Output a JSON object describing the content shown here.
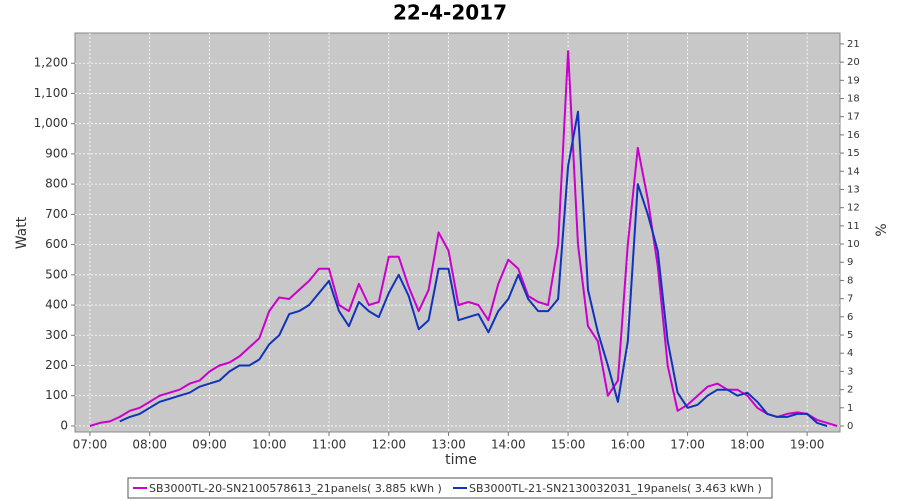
{
  "chart_data": {
    "type": "line",
    "title": "22-4-2017",
    "x_label": "time",
    "y_label": "Watt",
    "y2_label": "%",
    "x": [
      "07:00",
      "07:10",
      "07:20",
      "07:30",
      "07:40",
      "07:50",
      "08:00",
      "08:10",
      "08:20",
      "08:30",
      "08:40",
      "08:50",
      "09:00",
      "09:10",
      "09:20",
      "09:30",
      "09:40",
      "09:50",
      "10:00",
      "10:10",
      "10:20",
      "10:30",
      "10:40",
      "10:50",
      "11:00",
      "11:10",
      "11:20",
      "11:30",
      "11:40",
      "11:50",
      "12:00",
      "12:10",
      "12:20",
      "12:30",
      "12:40",
      "12:50",
      "13:00",
      "13:10",
      "13:20",
      "13:30",
      "13:40",
      "13:50",
      "14:00",
      "14:10",
      "14:20",
      "14:30",
      "14:40",
      "14:50",
      "15:00",
      "15:10",
      "15:20",
      "15:30",
      "15:40",
      "15:50",
      "16:00",
      "16:10",
      "16:20",
      "16:30",
      "16:40",
      "16:50",
      "17:00",
      "17:10",
      "17:20",
      "17:30",
      "17:40",
      "17:50",
      "18:00",
      "18:10",
      "18:20",
      "18:30",
      "18:40",
      "18:50",
      "19:00",
      "19:10",
      "19:20",
      "19:30"
    ],
    "series": [
      {
        "name": "SB3000TL-20-SN2100578613_21panels( 3.885 kWh )",
        "color": "#cc00cc",
        "values": [
          0,
          10,
          15,
          30,
          50,
          60,
          80,
          100,
          110,
          120,
          140,
          150,
          180,
          200,
          210,
          230,
          260,
          290,
          380,
          425,
          420,
          450,
          480,
          520,
          520,
          400,
          380,
          470,
          400,
          410,
          560,
          560,
          460,
          380,
          450,
          640,
          580,
          400,
          410,
          400,
          350,
          470,
          550,
          520,
          430,
          410,
          400,
          600,
          1240,
          600,
          330,
          280,
          100,
          150,
          600,
          920,
          750,
          530,
          200,
          50,
          70,
          100,
          130,
          140,
          120,
          120,
          100,
          60,
          40,
          30,
          40,
          45,
          40,
          20,
          10,
          0
        ]
      },
      {
        "name": "SB3000TL-21-SN2130032031_19panels( 3.463 kWh )",
        "color": "#1133bb",
        "values": [
          null,
          null,
          null,
          15,
          30,
          40,
          60,
          80,
          90,
          100,
          110,
          130,
          140,
          150,
          180,
          200,
          200,
          220,
          270,
          300,
          370,
          380,
          400,
          440,
          480,
          380,
          330,
          410,
          380,
          360,
          440,
          500,
          430,
          320,
          350,
          520,
          520,
          350,
          360,
          370,
          310,
          380,
          420,
          500,
          420,
          380,
          380,
          420,
          860,
          1040,
          450,
          310,
          200,
          80,
          280,
          800,
          700,
          580,
          280,
          110,
          60,
          70,
          100,
          120,
          120,
          100,
          110,
          80,
          40,
          30,
          30,
          40,
          40,
          10,
          0,
          null
        ]
      }
    ],
    "xlim": [
      "06:45",
      "19:33"
    ],
    "xticks": [
      "07:00",
      "08:00",
      "09:00",
      "10:00",
      "11:00",
      "12:00",
      "13:00",
      "14:00",
      "15:00",
      "16:00",
      "17:00",
      "18:00",
      "19:00"
    ],
    "ylim": [
      -20,
      1300
    ],
    "yticks": [
      0,
      100,
      200,
      300,
      400,
      500,
      600,
      700,
      800,
      900,
      {
        "value": 1000,
        "label": "1,000"
      },
      {
        "value": 1100,
        "label": "1,100"
      },
      {
        "value": 1200,
        "label": "1,200"
      }
    ],
    "y2lim": [
      -0.33,
      21.6
    ],
    "y2ticks": [
      0,
      1,
      2,
      3,
      4,
      5,
      6,
      7,
      8,
      9,
      10,
      11,
      12,
      13,
      14,
      15,
      16,
      17,
      18,
      19,
      20,
      21
    ],
    "grid": true,
    "legend": "bottom"
  }
}
